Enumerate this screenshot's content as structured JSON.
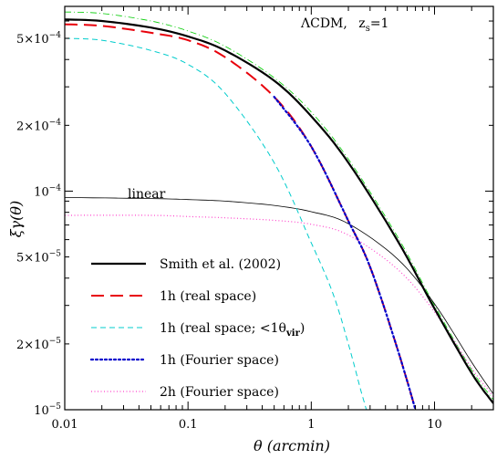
{
  "chart_data": {
    "type": "line",
    "title": "",
    "xlabel": "θ (arcmin)",
    "ylabel": "ξγ(θ)",
    "x_scale": "log",
    "y_scale": "log",
    "xlim": [
      0.01,
      30
    ],
    "ylim": [
      1e-05,
      0.0007
    ],
    "grid": false,
    "annotation": {
      "main": "ΛCDM,",
      "z_symbol": "z",
      "z_sub": "s",
      "z_value": "=1"
    },
    "curve_label": "linear",
    "x_ticks": [
      {
        "value": 0.01,
        "label": "0.01"
      },
      {
        "value": 0.1,
        "label": "0.1"
      },
      {
        "value": 1,
        "label": "1"
      },
      {
        "value": 10,
        "label": "10"
      }
    ],
    "y_ticks": [
      {
        "value": 1e-05,
        "mant": "10",
        "exp": "−5"
      },
      {
        "value": 2e-05,
        "mant": "2×10",
        "exp": "−5"
      },
      {
        "value": 5e-05,
        "mant": "5×10",
        "exp": "−5"
      },
      {
        "value": 0.0001,
        "mant": "10",
        "exp": "−4"
      },
      {
        "value": 0.0002,
        "mant": "2×10",
        "exp": "−4"
      },
      {
        "value": 0.0005,
        "mant": "5×10",
        "exp": "−4"
      }
    ],
    "legend_position": "lower-left",
    "series": [
      {
        "name": "Smith et al. (2002)",
        "color": "#000000",
        "style": "solid-thick",
        "x": [
          0.01,
          0.02,
          0.05,
          0.1,
          0.2,
          0.5,
          1,
          2,
          5,
          10,
          20,
          30
        ],
        "y": [
          0.00061,
          0.0006,
          0.00056,
          0.00051,
          0.00044,
          0.00032,
          0.00022,
          0.000135,
          5.95e-05,
          2.9e-05,
          1.47e-05,
          1.07e-05
        ]
      },
      {
        "name": "1h (real space)",
        "color": "#e8000b",
        "style": "long-dash",
        "x": [
          0.01,
          0.02,
          0.05,
          0.1,
          0.2,
          0.5,
          1,
          2,
          3,
          5,
          7
        ],
        "y": [
          0.00058,
          0.00057,
          0.00053,
          0.00049,
          0.00041,
          0.00027,
          0.00016,
          7.3e-05,
          4.5e-05,
          1.9e-05,
          1e-05
        ]
      },
      {
        "name_main": "1h (real space; <1θ",
        "name_sub": "vir",
        "name_close": ")",
        "color": "#00cccc",
        "style": "dash-dot",
        "x": [
          0.01,
          0.02,
          0.05,
          0.1,
          0.2,
          0.5,
          1,
          1.5,
          2,
          2.5,
          2.8
        ],
        "y": [
          0.0005,
          0.00049,
          0.00044,
          0.00038,
          0.00028,
          0.000135,
          5.8e-05,
          3.4e-05,
          2e-05,
          1.25e-05,
          1e-05
        ]
      },
      {
        "name": "1h (Fourier space)",
        "color": "#0000cc",
        "style": "dotted",
        "x": [
          0.5,
          1,
          2,
          3,
          5,
          7
        ],
        "y": [
          0.00027,
          0.00016,
          7.3e-05,
          4.5e-05,
          1.9e-05,
          1e-05
        ]
      },
      {
        "name": "2h (Fourier space)",
        "color": "#ff44cc",
        "style": "fine-dotted",
        "x": [
          0.01,
          0.05,
          0.1,
          0.2,
          0.5,
          1,
          2,
          5,
          10,
          20,
          30
        ],
        "y": [
          7.75e-05,
          7.75e-05,
          7.65e-05,
          7.55e-05,
          7.35e-05,
          7.05e-05,
          6.3e-05,
          4.4e-05,
          2.8e-05,
          1.55e-05,
          1.15e-05
        ]
      },
      {
        "name": "linear",
        "color": "#000000",
        "style": "solid-thin",
        "x": [
          0.01,
          0.05,
          0.1,
          0.2,
          0.5,
          1,
          2,
          5,
          10,
          20,
          30
        ],
        "y": [
          9.35e-05,
          9.25e-05,
          9.15e-05,
          9e-05,
          8.6e-05,
          8.05e-05,
          7.1e-05,
          4.9e-05,
          3.05e-05,
          1.65e-05,
          1.18e-05
        ]
      },
      {
        "name": "",
        "color": "#00cc00",
        "style": "thin-dash-dot",
        "x": [
          0.01,
          0.02,
          0.05,
          0.1,
          0.2,
          0.5,
          1,
          2,
          5,
          10,
          20,
          30
        ],
        "y": [
          0.00066,
          0.00065,
          0.0006,
          0.00054,
          0.00046,
          0.00033,
          0.00023,
          0.00014,
          6.2e-05,
          3e-05,
          1.52e-05,
          1.11e-05
        ]
      }
    ]
  }
}
